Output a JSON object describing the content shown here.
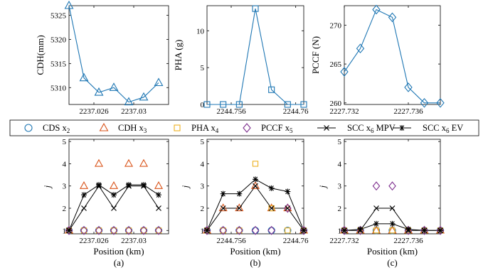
{
  "chart_data": [
    {
      "panel": "top-a",
      "type": "line",
      "ylabel": "CDH(mm)",
      "xlim": [
        2237.0235,
        2237.0335
      ],
      "ylim": [
        5306.5,
        5327
      ],
      "xticks": [
        2237.026,
        2237.03
      ],
      "xticklabels": [
        "2237.026",
        "2237.03"
      ],
      "yticks": [
        5310,
        5315,
        5320,
        5325
      ],
      "yticklabels": [
        "5310",
        "5315",
        "5320",
        "5325"
      ],
      "series": [
        {
          "marker": "triangle",
          "color": "#1f77b4",
          "x": [
            2237.0235,
            2237.025,
            2237.0265,
            2237.028,
            2237.0295,
            2237.031,
            2237.0325
          ],
          "y": [
            5327,
            5312,
            5309,
            5310,
            5307,
            5308,
            5311
          ]
        }
      ]
    },
    {
      "panel": "top-b",
      "type": "line",
      "ylabel": "PHA (g)",
      "xlim": [
        2244.7545,
        2244.7605
      ],
      "ylim": [
        0,
        13.4
      ],
      "xticks": [
        2244.756,
        2244.76
      ],
      "xticklabels": [
        "2244.756",
        "2244.76"
      ],
      "yticks": [
        0,
        5,
        10
      ],
      "yticklabels": [
        "0",
        "5",
        "10"
      ],
      "series": [
        {
          "marker": "square",
          "color": "#1f77b4",
          "x": [
            2244.7545,
            2244.7555,
            2244.7565,
            2244.7575,
            2244.7585,
            2244.7595,
            2244.7605
          ],
          "y": [
            0,
            0,
            0,
            13,
            2,
            0,
            0
          ]
        }
      ]
    },
    {
      "panel": "top-c",
      "type": "line",
      "ylabel": "PCCF (N)",
      "xlim": [
        2227.732,
        2227.738
      ],
      "ylim": [
        259.8,
        272.5
      ],
      "xticks": [
        2227.732,
        2227.736
      ],
      "xticklabels": [
        "2227.732",
        "2227.736"
      ],
      "yticks": [
        260,
        265,
        270
      ],
      "yticklabels": [
        "260",
        "265",
        "270"
      ],
      "series": [
        {
          "marker": "diamond",
          "color": "#1f77b4",
          "x": [
            2227.732,
            2227.733,
            2227.734,
            2227.735,
            2227.736,
            2227.737,
            2227.738
          ],
          "y": [
            264,
            267,
            272,
            271,
            262,
            260,
            260
          ]
        }
      ]
    },
    {
      "panel": "bottom-a",
      "type": "scatter",
      "xlabel": "Position (km)",
      "ylabel": "j",
      "caption": "(a)",
      "xlim": [
        2237.0235,
        2237.0335
      ],
      "ylim": [
        0.85,
        5.1
      ],
      "xticks": [
        2237.026,
        2237.03
      ],
      "xticklabels": [
        "2237.026",
        "2237.03"
      ],
      "yticks": [
        1,
        2,
        3,
        4,
        5
      ],
      "yticklabels": [
        "1",
        "2",
        "3",
        "4",
        "5"
      ],
      "x": [
        2237.0235,
        2237.025,
        2237.0265,
        2237.028,
        2237.0295,
        2237.031,
        2237.0325
      ],
      "series": [
        {
          "name": "CDS x2",
          "y": [
            1,
            1,
            1,
            1,
            1,
            1,
            1
          ]
        },
        {
          "name": "CDH x3",
          "y": [
            1,
            3,
            4,
            3,
            4,
            4,
            3
          ]
        },
        {
          "name": "PHA x4",
          "y": [
            1,
            1,
            1,
            1,
            1,
            1,
            1
          ]
        },
        {
          "name": "PCCF x5",
          "y": [
            1,
            1,
            1,
            1,
            1,
            1,
            1
          ]
        },
        {
          "name": "SCC x6 MPV",
          "y": [
            1,
            2,
            3,
            2,
            3,
            3,
            2
          ]
        },
        {
          "name": "SCC x6 EV",
          "y": [
            1,
            2.6,
            3.05,
            2.6,
            3.05,
            3.05,
            2.6
          ]
        }
      ]
    },
    {
      "panel": "bottom-b",
      "type": "scatter",
      "xlabel": "Position (km)",
      "ylabel": "j",
      "caption": "(b)",
      "xlim": [
        2244.7545,
        2244.7605
      ],
      "ylim": [
        0.85,
        5.1
      ],
      "xticks": [
        2244.756,
        2244.76
      ],
      "xticklabels": [
        "2244.756",
        "2244.76"
      ],
      "yticks": [
        1,
        2,
        3,
        4,
        5
      ],
      "yticklabels": [
        "1",
        "2",
        "3",
        "4",
        "5"
      ],
      "x": [
        2244.7545,
        2244.7555,
        2244.7565,
        2244.7575,
        2244.7585,
        2244.7595,
        2244.7605
      ],
      "series": [
        {
          "name": "CDS x2",
          "y": [
            1,
            1,
            1,
            1,
            1,
            1,
            1
          ]
        },
        {
          "name": "CDH x3",
          "y": [
            1,
            2,
            2,
            3,
            2,
            2,
            1
          ]
        },
        {
          "name": "PHA x4",
          "y": [
            1,
            1,
            1,
            4,
            2,
            1,
            1
          ]
        },
        {
          "name": "PCCF x5",
          "y": [
            1,
            1,
            1,
            1,
            1,
            2,
            1
          ]
        },
        {
          "name": "SCC x6 MPV",
          "y": [
            1,
            2,
            2,
            3,
            2,
            2,
            1
          ]
        },
        {
          "name": "SCC x6 EV",
          "y": [
            1,
            2.65,
            2.65,
            3.3,
            2.9,
            2.75,
            1
          ]
        }
      ]
    },
    {
      "panel": "bottom-c",
      "type": "scatter",
      "xlabel": "Position (km)",
      "ylabel": "j",
      "caption": "(c)",
      "xlim": [
        2227.732,
        2227.738
      ],
      "ylim": [
        0.85,
        5.1
      ],
      "xticks": [
        2227.732,
        2227.736
      ],
      "xticklabels": [
        "2227.732",
        "2227.736"
      ],
      "yticks": [
        1,
        2,
        3,
        4,
        5
      ],
      "yticklabels": [
        "1",
        "2",
        "3",
        "4",
        "5"
      ],
      "x": [
        2227.732,
        2227.733,
        2227.734,
        2227.735,
        2227.736,
        2227.737,
        2227.738
      ],
      "series": [
        {
          "name": "CDS x2",
          "y": [
            1,
            1,
            1,
            1,
            1,
            1,
            1
          ]
        },
        {
          "name": "CDH x3",
          "y": [
            1,
            1,
            1,
            1,
            1,
            1,
            1
          ]
        },
        {
          "name": "PHA x4",
          "y": [
            1,
            1,
            1,
            1,
            1,
            1,
            1
          ]
        },
        {
          "name": "PCCF x5",
          "y": [
            1,
            1,
            3,
            3,
            1,
            1,
            1
          ]
        },
        {
          "name": "SCC x6 MPV",
          "y": [
            1,
            1,
            2,
            2,
            1,
            1,
            1
          ]
        },
        {
          "name": "SCC x6 EV",
          "y": [
            1,
            1.05,
            1.3,
            1.3,
            1.05,
            1,
            1
          ]
        }
      ]
    }
  ],
  "legend": {
    "items": [
      {
        "key": "cds",
        "text": "CDS x",
        "sub": "2",
        "after": "",
        "marker": "circle",
        "color": "#1f77b4"
      },
      {
        "key": "cdh",
        "text": "CDH x",
        "sub": "3",
        "after": "",
        "marker": "triangle",
        "color": "#d95319"
      },
      {
        "key": "pha",
        "text": "PHA x",
        "sub": "4",
        "after": "",
        "marker": "square",
        "color": "#edb120"
      },
      {
        "key": "pccf",
        "text": "PCCF x",
        "sub": "5",
        "after": "",
        "marker": "diamond",
        "color": "#7e2f8e"
      },
      {
        "key": "mpv",
        "text": "SCC x",
        "sub": "6",
        "after": " MPV",
        "marker": "x",
        "color": "#000000"
      },
      {
        "key": "ev",
        "text": "SCC x",
        "sub": "6",
        "after": " EV",
        "marker": "asterisk",
        "color": "#000000"
      }
    ]
  },
  "colors": {
    "blue": "#1f77b4",
    "orange": "#d95319",
    "yellow": "#edb120",
    "purple": "#7e2f8e",
    "black": "#000000"
  }
}
